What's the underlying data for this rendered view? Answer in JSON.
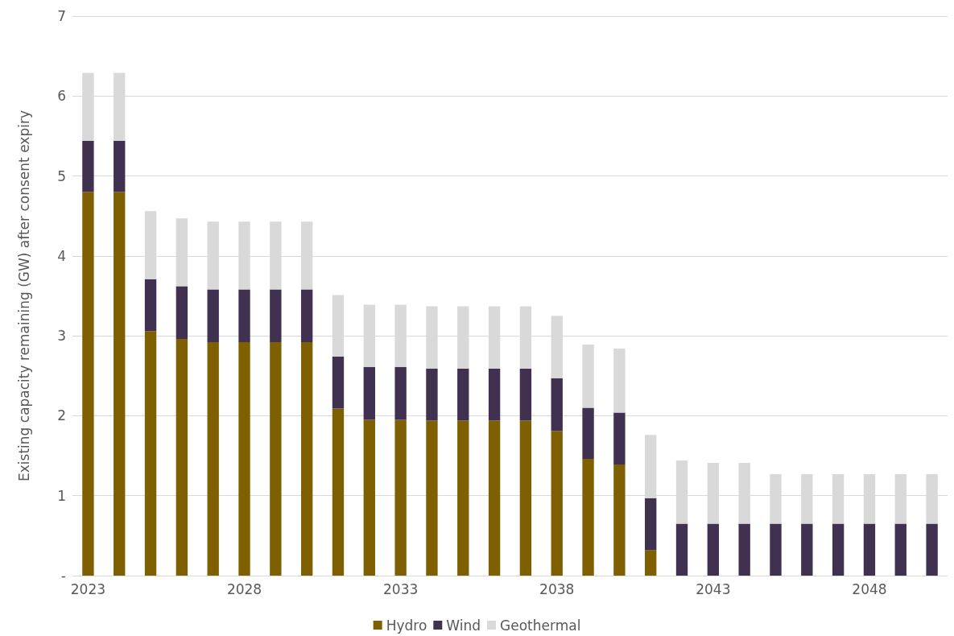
{
  "chart_data": {
    "type": "bar",
    "stacked": true,
    "ylabel": "Existing capacity remaining (GW) after consent expiry",
    "categories": [
      "2023",
      null,
      null,
      null,
      null,
      "2028",
      null,
      null,
      null,
      null,
      "2033",
      null,
      null,
      null,
      null,
      "2038",
      null,
      null,
      null,
      null,
      "2043",
      null,
      null,
      null,
      null,
      "2048",
      null,
      null
    ],
    "series": [
      {
        "name": "Hydro",
        "color": "#7f6000",
        "values": [
          4.8,
          4.8,
          3.06,
          2.96,
          2.92,
          2.92,
          2.92,
          2.92,
          2.09,
          1.95,
          1.95,
          1.94,
          1.94,
          1.94,
          1.94,
          1.81,
          1.46,
          1.39,
          0.32,
          0,
          0,
          0,
          0,
          0,
          0,
          0,
          0,
          0
        ]
      },
      {
        "name": "Wind",
        "color": "#403151",
        "values": [
          0.64,
          0.64,
          0.65,
          0.66,
          0.66,
          0.66,
          0.66,
          0.66,
          0.65,
          0.66,
          0.66,
          0.65,
          0.65,
          0.65,
          0.65,
          0.66,
          0.64,
          0.65,
          0.65,
          0.65,
          0.65,
          0.65,
          0.65,
          0.65,
          0.65,
          0.65,
          0.65,
          0.65
        ]
      },
      {
        "name": "Geothermal",
        "color": "#d9d9d9",
        "values": [
          0.85,
          0.85,
          0.85,
          0.85,
          0.85,
          0.85,
          0.85,
          0.85,
          0.77,
          0.78,
          0.78,
          0.78,
          0.78,
          0.78,
          0.78,
          0.78,
          0.79,
          0.8,
          0.79,
          0.79,
          0.76,
          0.76,
          0.62,
          0.62,
          0.62,
          0.62,
          0.62,
          0.62
        ]
      }
    ],
    "ylim": [
      0,
      7
    ],
    "yticks": [
      {
        "value": 0,
        "label": "-"
      },
      1,
      2,
      3,
      4,
      5,
      6,
      7
    ],
    "grid": "y",
    "legend": "bottom"
  }
}
